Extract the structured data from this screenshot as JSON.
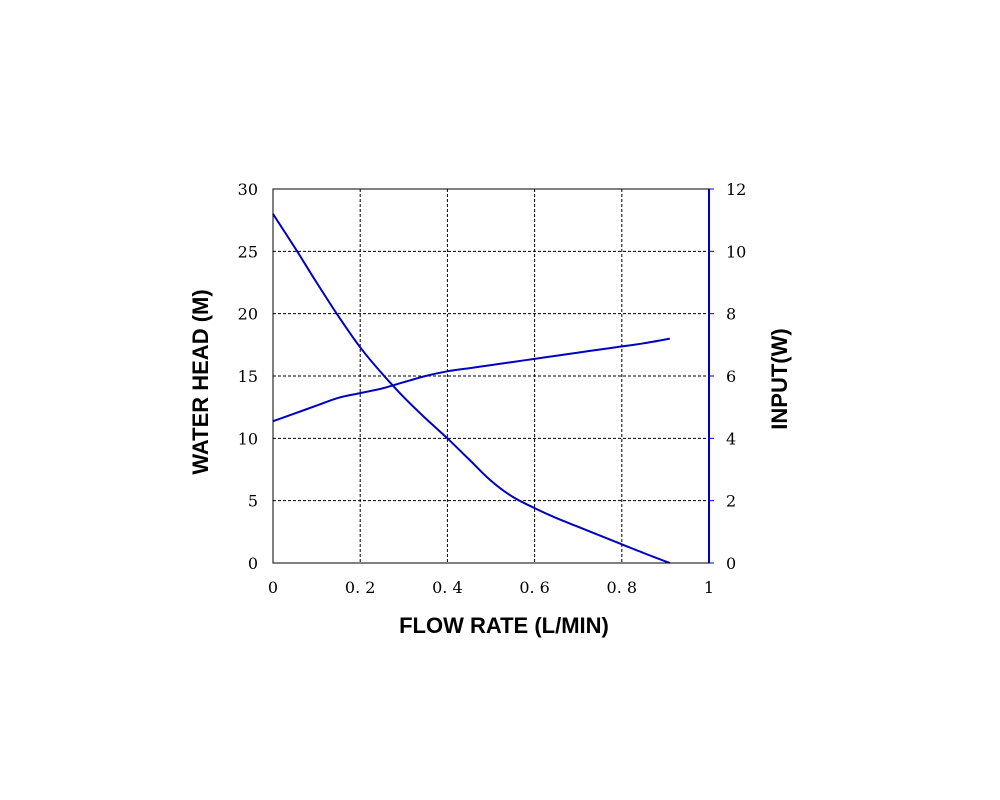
{
  "chart_data": {
    "type": "line",
    "xlabel": "FLOW RATE (L/MIN)",
    "ylabel": "WATER HEAD (M)",
    "y2label": "INPUT(W)",
    "xlim": [
      0,
      1
    ],
    "ylim": [
      0,
      30
    ],
    "y2lim": [
      0,
      12
    ],
    "grid": true,
    "x_ticks": [
      "0",
      "0. 2",
      "0. 4",
      "0. 6",
      "0. 8",
      "1"
    ],
    "x_tick_values": [
      0,
      0.2,
      0.4,
      0.6,
      0.8,
      1
    ],
    "y_ticks": [
      "0",
      "5",
      "10",
      "15",
      "20",
      "25",
      "30"
    ],
    "y_tick_values": [
      0,
      5,
      10,
      15,
      20,
      25,
      30
    ],
    "y2_ticks": [
      "0",
      "2",
      "4",
      "6",
      "8",
      "10",
      "12"
    ],
    "y2_tick_values": [
      0,
      2,
      4,
      6,
      8,
      10,
      12
    ],
    "series": [
      {
        "axis": "left",
        "color": "#0000c0",
        "x": [
          0,
          0.05,
          0.1,
          0.15,
          0.2,
          0.25,
          0.3,
          0.35,
          0.4,
          0.45,
          0.5,
          0.55,
          0.6,
          0.65,
          0.7,
          0.75,
          0.8,
          0.85,
          0.91
        ],
        "y": [
          28.0,
          25.3,
          22.5,
          19.8,
          17.3,
          15.2,
          13.3,
          11.6,
          10.0,
          8.3,
          6.6,
          5.3,
          4.4,
          3.6,
          2.9,
          2.2,
          1.5,
          0.8,
          0.0
        ]
      },
      {
        "axis": "right",
        "color": "#0000c0",
        "x": [
          0,
          0.05,
          0.1,
          0.15,
          0.2,
          0.25,
          0.3,
          0.35,
          0.4,
          0.45,
          0.5,
          0.55,
          0.6,
          0.65,
          0.7,
          0.75,
          0.8,
          0.85,
          0.91
        ],
        "y": [
          4.55,
          4.8,
          5.05,
          5.3,
          5.45,
          5.6,
          5.8,
          6.0,
          6.15,
          6.25,
          6.35,
          6.45,
          6.55,
          6.65,
          6.75,
          6.85,
          6.95,
          7.05,
          7.2
        ]
      }
    ]
  }
}
